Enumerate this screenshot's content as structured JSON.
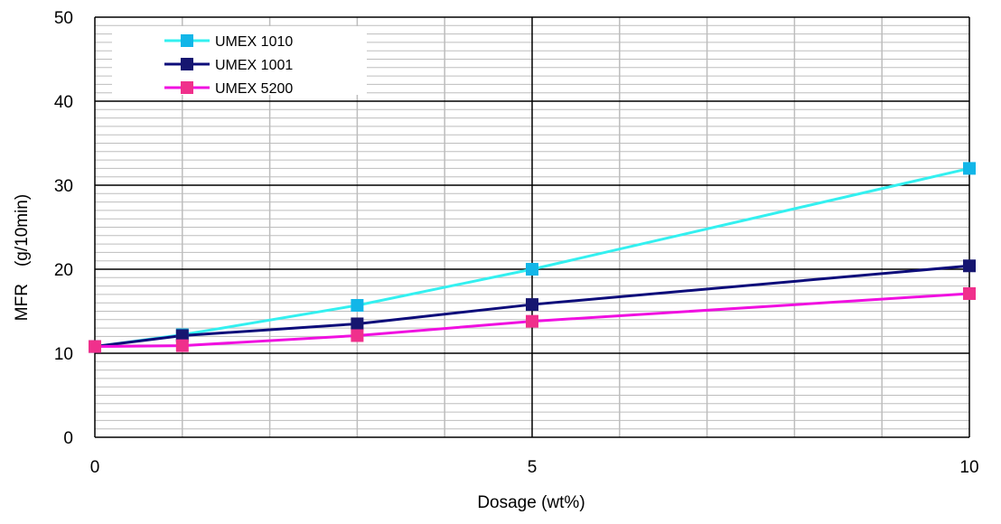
{
  "chart_data": {
    "type": "line",
    "title": "",
    "xlabel": "Dosage (wt%)",
    "ylabel": "MFR　(g/10min)",
    "xlim": [
      0,
      10
    ],
    "ylim": [
      0,
      50
    ],
    "x_ticks": [
      "0",
      "5",
      "10"
    ],
    "y_ticks": [
      "0",
      "10",
      "20",
      "30",
      "40",
      "50"
    ],
    "x_major_step": 5,
    "x_minor_step": 1,
    "y_major_step": 10,
    "y_minor_step": 1,
    "grid": true,
    "legend_position": "top-left",
    "series": [
      {
        "name": "UMEX 1010",
        "line_color": "#33F0F0",
        "marker_color": "#12B6E8",
        "x": [
          0,
          1,
          3,
          5,
          10
        ],
        "y": [
          10.8,
          12.2,
          15.7,
          20.0,
          32.0
        ]
      },
      {
        "name": "UMEX 1001",
        "line_color": "#0C0C7A",
        "marker_color": "#161670",
        "x": [
          0,
          1,
          3,
          5,
          10
        ],
        "y": [
          10.8,
          12.1,
          13.5,
          15.8,
          20.4
        ]
      },
      {
        "name": "UMEX 5200",
        "line_color": "#F010E0",
        "marker_color": "#F0308C",
        "x": [
          0,
          1,
          3,
          5,
          10
        ],
        "y": [
          10.8,
          10.9,
          12.1,
          13.8,
          17.1
        ]
      }
    ]
  }
}
